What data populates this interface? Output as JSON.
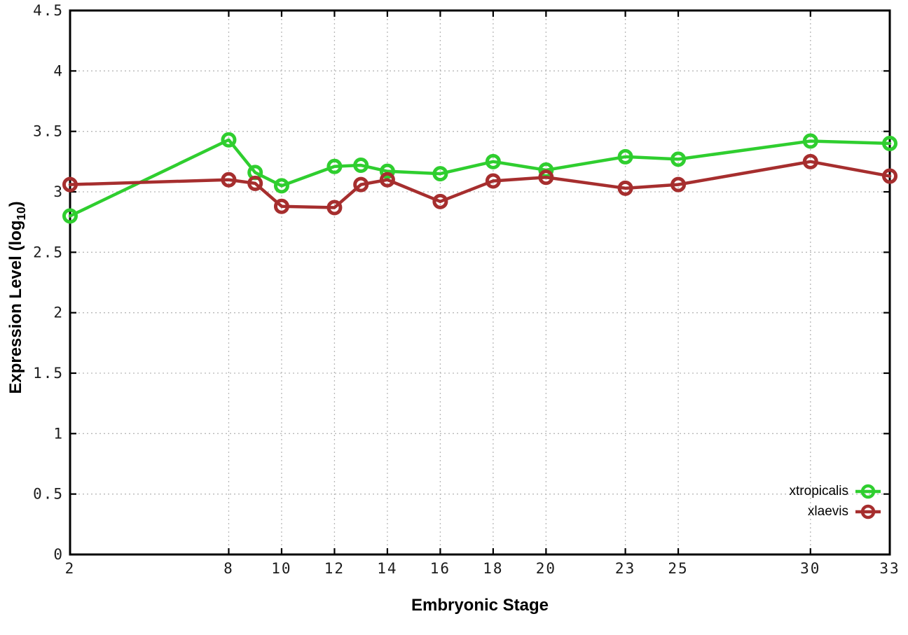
{
  "figure": {
    "background": "#ffffff",
    "axis_color": "#000000",
    "grid_color": "#b8b8b8",
    "tick_label_color": "#1c1c1c"
  },
  "chart_data": {
    "type": "line",
    "title": "",
    "xlabel": "Embryonic Stage",
    "ylabel": "Expression Level (log10)",
    "ylabel_parts": {
      "prefix": "Expression Level (log",
      "sub": "10",
      "suffix": ")"
    },
    "xlim": [
      2,
      33
    ],
    "ylim": [
      0,
      4.5
    ],
    "grid": true,
    "legend_position": "bottom-right",
    "x": [
      2,
      8,
      9,
      10,
      12,
      13,
      14,
      16,
      18,
      20,
      23,
      25,
      30,
      33
    ],
    "series": [
      {
        "name": "xtropicalis",
        "color": "#2fce2f",
        "marker": "open-circle",
        "values": [
          2.8,
          3.43,
          3.16,
          3.05,
          3.21,
          3.22,
          3.17,
          3.15,
          3.25,
          3.18,
          3.29,
          3.27,
          3.42,
          3.4
        ]
      },
      {
        "name": "xlaevis",
        "color": "#a62e2e",
        "marker": "open-circle",
        "values": [
          3.06,
          3.1,
          3.07,
          2.88,
          2.87,
          3.06,
          3.1,
          2.92,
          3.09,
          3.12,
          3.03,
          3.06,
          3.25,
          3.13
        ]
      }
    ],
    "x_ticks": {
      "values": [
        2,
        8,
        10,
        12,
        14,
        16,
        18,
        20,
        23,
        25,
        30,
        33
      ],
      "labels": [
        "2",
        "8",
        "10",
        "12",
        "14",
        "16",
        "18",
        "20",
        "23",
        "25",
        "30",
        "33"
      ]
    },
    "y_ticks": {
      "values": [
        0,
        0.5,
        1,
        1.5,
        2,
        2.5,
        3,
        3.5,
        4,
        4.5
      ],
      "labels": [
        "0",
        "0.5",
        "1",
        "1.5",
        "2",
        "2.5",
        "3",
        "3.5",
        "4",
        "4.5"
      ]
    }
  }
}
